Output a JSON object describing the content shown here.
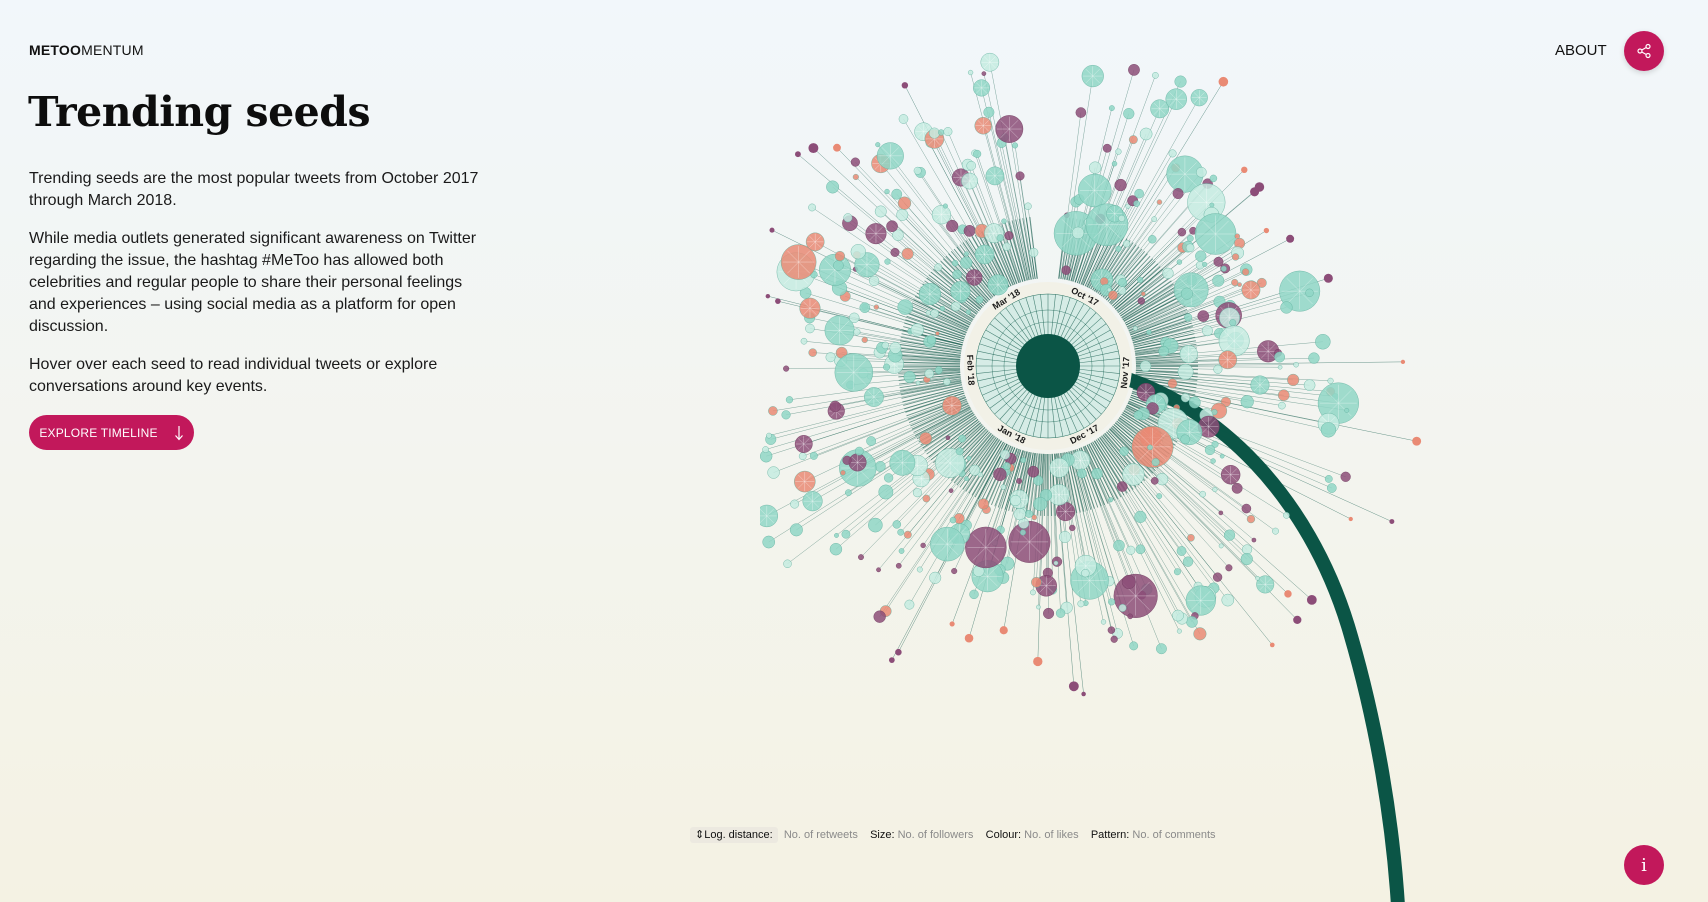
{
  "header": {
    "brand_bold": "METOO",
    "brand_rest": "MENTUM",
    "about_label": "ABOUT",
    "share_icon": "share-icon"
  },
  "intro": {
    "title": "Trending seeds",
    "paragraphs": [
      "Trending seeds are the most popular tweets from October 2017 through March 2018.",
      "While media outlets generated significant awareness on Twitter regarding the issue, the hashtag #MeToo has allowed both celebrities and regular people to share their personal feelings and experiences – using social media as a platform for open discussion.",
      "Hover over each seed to read individual tweets or explore conversations around key events."
    ],
    "cta_label": "EXPLORE TIMELINE",
    "cta_icon": "arrow-down-icon"
  },
  "viz": {
    "month_labels": [
      "Oct '17",
      "Nov '17",
      "Dec '17",
      "Jan '18",
      "Feb '18",
      "Mar '18"
    ],
    "colors": {
      "stem": "#0b5546",
      "mint": "#8fd6c6",
      "mint_light": "#c4ebe0",
      "mauve": "#8c4d78",
      "salmon": "#e98a74",
      "brand": "#c2185b"
    }
  },
  "legend": {
    "distance_label": "Log. distance:",
    "distance_value": "No. of retweets",
    "size_label": "Size:",
    "size_value": "No. of followers",
    "colour_label": "Colour:",
    "colour_value": "No. of likes",
    "pattern_label": "Pattern:",
    "pattern_value": "No. of comments",
    "sort_icon": "sort-arrows-icon"
  },
  "info_button": {
    "label": "i"
  }
}
